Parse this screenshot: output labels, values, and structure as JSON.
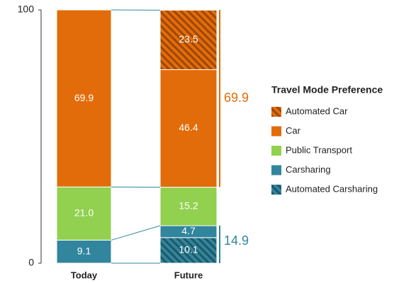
{
  "chart_data": {
    "type": "stacked_bar",
    "categories": [
      "Today",
      "Future"
    ],
    "series": [
      {
        "name": "Automated Carsharing",
        "color": "#31859c",
        "hatch": true,
        "values": [
          null,
          10.1
        ],
        "value_labels": [
          null,
          "10.1"
        ]
      },
      {
        "name": "Carsharing",
        "color": "#31859c",
        "hatch": false,
        "values": [
          9.1,
          4.7
        ],
        "value_labels": [
          "9.1",
          "4.7"
        ]
      },
      {
        "name": "Public Transport",
        "color": "#92d050",
        "hatch": false,
        "values": [
          21.0,
          15.2
        ],
        "value_labels": [
          "21.0",
          "15.2"
        ]
      },
      {
        "name": "Car",
        "color": "#e36c0a",
        "hatch": false,
        "values": [
          69.9,
          46.4
        ],
        "value_labels": [
          "69.9",
          "46.4"
        ]
      },
      {
        "name": "Automated Car",
        "color": "#e36c0a",
        "hatch": true,
        "values": [
          null,
          23.5
        ],
        "value_labels": [
          null,
          "23.5"
        ]
      }
    ],
    "legend_title": "Travel Mode Preference",
    "brackets": [
      {
        "value": 69.9,
        "label": "69.9",
        "color": "#e36c0a",
        "anchor": "top"
      },
      {
        "value": 14.9,
        "label": "14.9",
        "color": "#31859c",
        "anchor": "bottom"
      }
    ],
    "ylim": [
      0,
      100
    ],
    "yticks": [
      0,
      100
    ]
  }
}
